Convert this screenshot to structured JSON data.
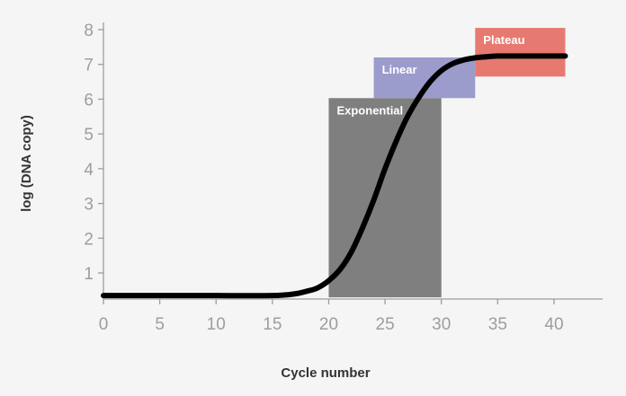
{
  "chart_data": {
    "type": "line",
    "xlabel": "Cycle number",
    "ylabel": "log (DNA copy)",
    "xlim": [
      0,
      42
    ],
    "ylim": [
      0.3,
      8
    ],
    "x_ticks": [
      0,
      5,
      10,
      15,
      20,
      25,
      30,
      35,
      40
    ],
    "y_ticks": [
      1,
      2,
      3,
      4,
      5,
      6,
      7,
      8
    ],
    "grid": false,
    "series": [
      {
        "color": "#000000",
        "x": [
          0,
          5,
          10,
          15,
          17,
          18,
          19,
          20,
          21,
          22,
          23,
          24,
          25,
          26,
          27,
          28,
          29,
          30,
          31,
          32,
          33,
          34,
          35,
          36,
          37,
          38,
          40,
          41
        ],
        "y": [
          0.35,
          0.35,
          0.35,
          0.35,
          0.4,
          0.47,
          0.57,
          0.78,
          1.1,
          1.6,
          2.3,
          3.1,
          4.0,
          4.8,
          5.5,
          6.05,
          6.5,
          6.82,
          7.02,
          7.13,
          7.19,
          7.22,
          7.24,
          7.24,
          7.24,
          7.24,
          7.24,
          7.24
        ]
      }
    ],
    "regions": [
      {
        "label": "Exponential",
        "x0": 20,
        "x1": 30,
        "y0": 0.3,
        "y1": 6.03,
        "color": "#7f7f7f"
      },
      {
        "label": "Linear",
        "x0": 24,
        "x1": 33,
        "y0": 6.03,
        "y1": 7.2,
        "color": "#9b9bcc"
      },
      {
        "label": "Plateau",
        "x0": 33,
        "x1": 41,
        "y0": 6.65,
        "y1": 8.05,
        "color": "#e77a70"
      }
    ]
  }
}
